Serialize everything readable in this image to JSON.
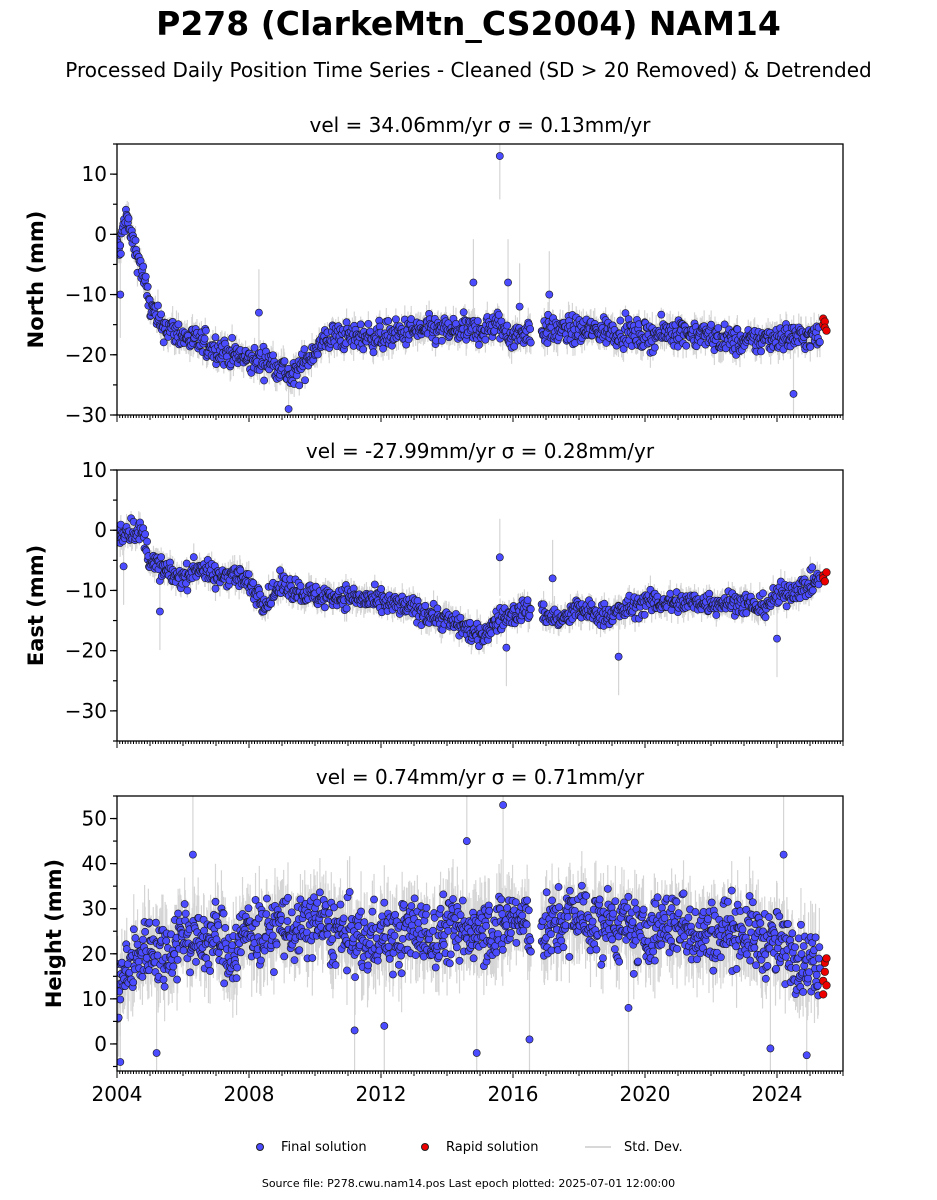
{
  "header": {
    "title": "P278 (ClarkeMtn_CS2004) NAM14",
    "subtitle": "Processed Daily Position Time Series - Cleaned (SD > 20 Removed) & Detrended"
  },
  "legend": {
    "final": "Final solution",
    "rapid": "Rapid solution",
    "std": "Std. Dev."
  },
  "footer": "Source file: P278.cwu.nam14.pos  Last epoch plotted: 2025-07-01 12:00:00",
  "colors": {
    "final": "#4b4bff",
    "rapid": "#ee0000",
    "std": "#c8c8c8",
    "marker_edge": "#1a1a1a"
  },
  "chart_data": [
    {
      "type": "scatter",
      "panel": "north",
      "title": "vel = 34.06mm/yr   σ = 0.13mm/yr",
      "ylabel": "North (mm)",
      "xlim": [
        2004.0,
        2026.0
      ],
      "ylim": [
        -30,
        15
      ],
      "yticks": [
        10,
        0,
        -10,
        -20,
        -30
      ],
      "ytick_labels": [
        "10",
        "0",
        "−10",
        "−20",
        "−30"
      ],
      "series": [
        {
          "name": "Final solution",
          "x": [
            2004.0,
            2004.1,
            2004.2,
            2004.3,
            2004.4,
            2004.6,
            2004.8,
            2005.0,
            2005.3,
            2005.7,
            2006.0,
            2006.5,
            2007.0,
            2007.5,
            2008.0,
            2008.5,
            2009.0,
            2009.3,
            2009.6,
            2010.0,
            2010.5,
            2011.0,
            2012.0,
            2013.0,
            2014.0,
            2015.0,
            2015.5,
            2016.0,
            2016.5,
            2017.0,
            2018.0,
            2019.0,
            2020.0,
            2021.0,
            2022.0,
            2023.0,
            2024.0,
            2025.0,
            2025.3
          ],
          "y": [
            -2,
            -3,
            2,
            3,
            0,
            -3,
            -7,
            -12,
            -15,
            -16,
            -17,
            -18,
            -19,
            -20,
            -21,
            -21,
            -22,
            -24,
            -22,
            -19,
            -17,
            -17,
            -17,
            -16,
            -16,
            -16,
            -15,
            -17,
            -16,
            -16,
            -16,
            -16,
            -17,
            -16,
            -17,
            -18,
            -17,
            -17,
            -17
          ]
        },
        {
          "name": "Rapid solution",
          "x": [
            2025.4,
            2025.4,
            2025.45,
            2025.45,
            2025.5
          ],
          "y": [
            -14,
            -15,
            -14.5,
            -15.5,
            -16
          ]
        }
      ],
      "outliers": {
        "x": [
          2004.1,
          2008.3,
          2009.2,
          2014.8,
          2015.6,
          2015.85,
          2016.2,
          2017.1,
          2024.5
        ],
        "y": [
          -10,
          -13,
          -29,
          -8,
          13,
          -8,
          -12,
          -10,
          -26.5
        ]
      }
    },
    {
      "type": "scatter",
      "panel": "east",
      "title": "vel = -27.99mm/yr   σ = 0.28mm/yr",
      "ylabel": "East (mm)",
      "xlim": [
        2004.0,
        2026.0
      ],
      "ylim": [
        -35,
        10
      ],
      "yticks": [
        10,
        0,
        -10,
        -20,
        -30
      ],
      "ytick_labels": [
        "10",
        "0",
        "−10",
        "−20",
        "−30"
      ],
      "series": [
        {
          "name": "Final solution",
          "x": [
            2004.0,
            2004.3,
            2004.6,
            2004.8,
            2005.0,
            2005.5,
            2006.0,
            2006.5,
            2007.0,
            2007.5,
            2008.0,
            2008.5,
            2009.0,
            2010.0,
            2011.0,
            2012.0,
            2013.0,
            2013.5,
            2014.0,
            2014.5,
            2015.0,
            2015.5,
            2016.0,
            2016.5,
            2017.0,
            2017.5,
            2018.0,
            2018.5,
            2019.0,
            2020.0,
            2021.0,
            2022.0,
            2023.0,
            2023.5,
            2024.0,
            2024.5,
            2025.0,
            2025.3
          ],
          "y": [
            -1,
            0,
            0,
            -1,
            -5,
            -7,
            -8,
            -6,
            -8,
            -7,
            -9,
            -12,
            -9,
            -11,
            -11,
            -12,
            -13,
            -14,
            -15,
            -16,
            -18,
            -15,
            -14,
            -13,
            -14,
            -15,
            -13,
            -14,
            -14,
            -12,
            -12,
            -12,
            -12,
            -13,
            -11,
            -10,
            -9,
            -8
          ]
        },
        {
          "name": "Rapid solution",
          "x": [
            2025.4,
            2025.4,
            2025.45,
            2025.5
          ],
          "y": [
            -7.5,
            -8,
            -8.5,
            -7
          ]
        }
      ],
      "outliers": {
        "x": [
          2004.2,
          2005.3,
          2015.6,
          2015.8,
          2017.2,
          2019.2,
          2024.0
        ],
        "y": [
          -6,
          -13.5,
          -4.5,
          -19.5,
          -8,
          -21,
          -18
        ]
      }
    },
    {
      "type": "scatter",
      "panel": "height",
      "title": "vel = 0.74mm/yr   σ = 0.71mm/yr",
      "ylabel": "Height (mm)",
      "xlim": [
        2004.0,
        2026.0
      ],
      "ylim": [
        -6,
        55
      ],
      "yticks": [
        50,
        40,
        30,
        20,
        10,
        0
      ],
      "ytick_labels": [
        "50",
        "40",
        "30",
        "20",
        "10",
        "0"
      ],
      "xticks": [
        2004,
        2008,
        2012,
        2016,
        2020,
        2024
      ],
      "xtick_labels": [
        "2004",
        "2008",
        "2012",
        "2016",
        "2020",
        "2024"
      ],
      "series": [
        {
          "name": "Final solution",
          "x": [
            2004.0,
            2004.5,
            2005.0,
            2005.5,
            2006.0,
            2006.5,
            2007.0,
            2007.5,
            2008.0,
            2008.5,
            2009.0,
            2009.5,
            2010.0,
            2010.5,
            2011.0,
            2011.5,
            2012.0,
            2012.5,
            2013.0,
            2013.5,
            2014.0,
            2014.5,
            2015.0,
            2015.5,
            2016.0,
            2016.5,
            2017.0,
            2017.5,
            2018.0,
            2018.5,
            2019.0,
            2019.5,
            2020.0,
            2020.5,
            2021.0,
            2021.5,
            2022.0,
            2022.5,
            2023.0,
            2023.5,
            2024.0,
            2024.5,
            2025.0,
            2025.3
          ],
          "y": [
            12,
            18,
            22,
            20,
            25,
            22,
            24,
            20,
            26,
            24,
            27,
            24,
            28,
            25,
            24,
            22,
            25,
            23,
            26,
            23,
            26,
            24,
            27,
            25,
            28,
            26,
            25,
            27,
            29,
            26,
            27,
            25,
            24,
            26,
            27,
            25,
            24,
            26,
            25,
            23,
            22,
            20,
            18,
            17
          ]
        },
        {
          "name": "Rapid solution",
          "x": [
            2025.4,
            2025.4,
            2025.45,
            2025.45,
            2025.5,
            2025.5
          ],
          "y": [
            11,
            14,
            16,
            18,
            13,
            19
          ]
        }
      ],
      "outliers": {
        "x": [
          2004.1,
          2005.2,
          2006.3,
          2011.2,
          2012.1,
          2014.6,
          2014.9,
          2015.7,
          2016.5,
          2019.5,
          2023.8,
          2024.2,
          2024.9
        ],
        "y": [
          -4,
          -2,
          42,
          3,
          4,
          45,
          -2,
          53,
          1,
          8,
          -1,
          42,
          -2.5
        ]
      }
    }
  ]
}
